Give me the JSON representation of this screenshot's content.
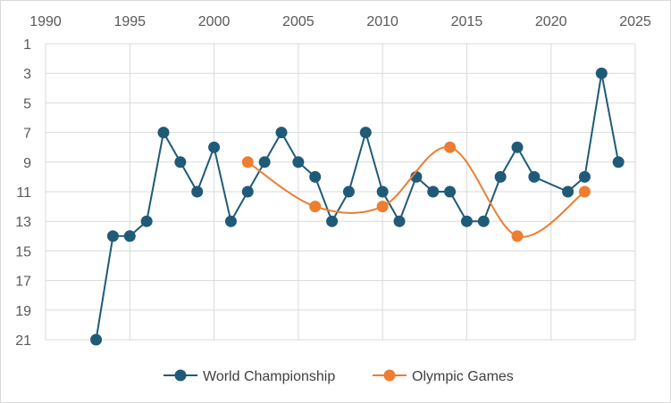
{
  "chart_data": {
    "type": "line",
    "title": "",
    "xlabel": "",
    "ylabel": "",
    "xlim": [
      1990,
      2025
    ],
    "ylim": [
      1,
      21
    ],
    "y_reversed": true,
    "x_axis_position": "top",
    "x_ticks": [
      "1990",
      "1995",
      "2000",
      "2005",
      "2010",
      "2015",
      "2020",
      "2025"
    ],
    "y_ticks": [
      "1",
      "3",
      "5",
      "7",
      "9",
      "11",
      "13",
      "15",
      "17",
      "19",
      "21"
    ],
    "grid": true,
    "legend_position": "bottom",
    "series": [
      {
        "name": "World Championship",
        "color": "#1f5a78",
        "smooth": false,
        "points": [
          {
            "x": 1993,
            "y": 21
          },
          {
            "x": 1994,
            "y": 14
          },
          {
            "x": 1995,
            "y": 14
          },
          {
            "x": 1996,
            "y": 13
          },
          {
            "x": 1997,
            "y": 7
          },
          {
            "x": 1998,
            "y": 9
          },
          {
            "x": 1999,
            "y": 11
          },
          {
            "x": 2000,
            "y": 8
          },
          {
            "x": 2001,
            "y": 13
          },
          {
            "x": 2002,
            "y": 11
          },
          {
            "x": 2003,
            "y": 9
          },
          {
            "x": 2004,
            "y": 7
          },
          {
            "x": 2005,
            "y": 9
          },
          {
            "x": 2006,
            "y": 10
          },
          {
            "x": 2007,
            "y": 13
          },
          {
            "x": 2008,
            "y": 11
          },
          {
            "x": 2009,
            "y": 7
          },
          {
            "x": 2010,
            "y": 11
          },
          {
            "x": 2011,
            "y": 13
          },
          {
            "x": 2012,
            "y": 10
          },
          {
            "x": 2013,
            "y": 11
          },
          {
            "x": 2014,
            "y": 11
          },
          {
            "x": 2015,
            "y": 13
          },
          {
            "x": 2016,
            "y": 13
          },
          {
            "x": 2017,
            "y": 10
          },
          {
            "x": 2018,
            "y": 8
          },
          {
            "x": 2019,
            "y": 10
          },
          {
            "x": 2021,
            "y": 11
          },
          {
            "x": 2022,
            "y": 10
          },
          {
            "x": 2023,
            "y": 3
          },
          {
            "x": 2024,
            "y": 9
          }
        ]
      },
      {
        "name": "Olympic Games",
        "color": "#ed7d31",
        "smooth": true,
        "points": [
          {
            "x": 2002,
            "y": 9
          },
          {
            "x": 2006,
            "y": 12
          },
          {
            "x": 2010,
            "y": 12
          },
          {
            "x": 2014,
            "y": 8
          },
          {
            "x": 2018,
            "y": 14
          },
          {
            "x": 2022,
            "y": 11
          }
        ]
      }
    ]
  }
}
